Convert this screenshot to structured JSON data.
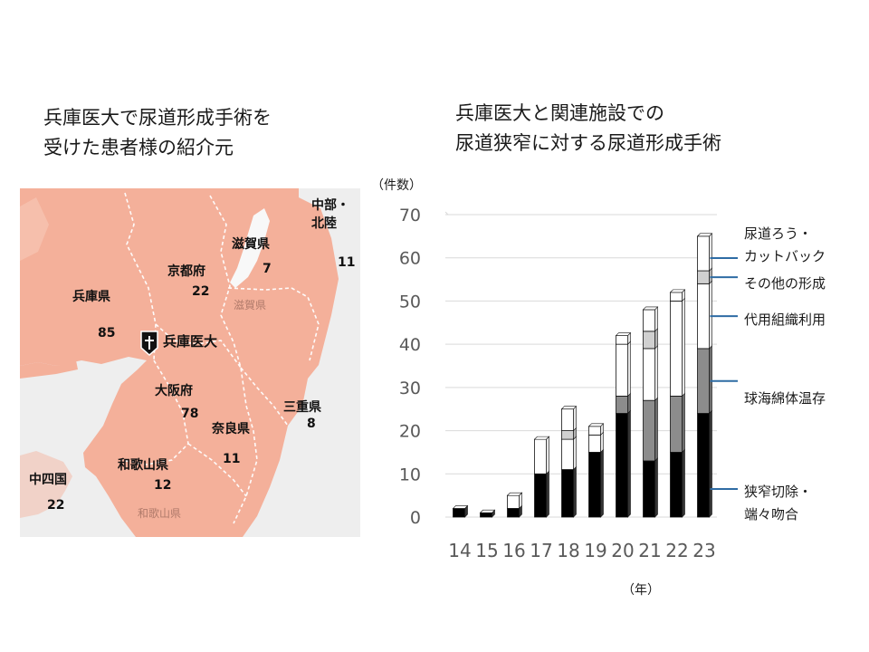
{
  "left_title": {
    "line1": "兵庫医大で尿道形成手術を",
    "line2": "受けた患者様の紹介元"
  },
  "right_title": {
    "line1": "兵庫医大と関連施設での",
    "line2": "尿道狭窄に対する尿道形成手術"
  },
  "map": {
    "regions": [
      {
        "name": "中部・",
        "name2": "北陸",
        "count": "11"
      },
      {
        "name": "滋賀県",
        "count": "7"
      },
      {
        "name": "京都府",
        "count": "22"
      },
      {
        "name": "兵庫県",
        "count": "85"
      },
      {
        "name": "大阪府",
        "count": "78"
      },
      {
        "name": "三重県",
        "count": "8"
      },
      {
        "name": "奈良県",
        "count": "11"
      },
      {
        "name": "和歌山県",
        "count": "12"
      },
      {
        "name": "中四国",
        "count": "22"
      }
    ],
    "hospital_label": "兵庫医大",
    "faded_labels": {
      "shiga": "滋賀県",
      "wakayama": "和歌山県"
    },
    "colors": {
      "land": "#f4b09a",
      "sea": "#eeeeee",
      "border": "#ffffff"
    }
  },
  "chart_data": {
    "type": "bar",
    "stacked": true,
    "y_unit_label": "（件数）",
    "x_unit_label": "（年）",
    "ylim": [
      0,
      70
    ],
    "yticks": [
      "0",
      "10",
      "20",
      "30",
      "40",
      "50",
      "60",
      "70"
    ],
    "categories": [
      "14",
      "15",
      "16",
      "17",
      "18",
      "19",
      "20",
      "21",
      "22",
      "23"
    ],
    "series": [
      {
        "name": "狭窄切除・端々吻合",
        "name_lines": [
          "狭窄切除・",
          "端々吻合"
        ],
        "color": "#000000",
        "values": [
          2,
          1,
          2,
          10,
          11,
          15,
          24,
          13,
          15,
          24
        ]
      },
      {
        "name": "球海綿体温存",
        "name_lines": [
          "球海綿体温存"
        ],
        "color": "#8c8c8c",
        "values": [
          0,
          0,
          0,
          0,
          0,
          0,
          4,
          14,
          13,
          15
        ]
      },
      {
        "name": "代用組織利用",
        "name_lines": [
          "代用組織利用"
        ],
        "color": "#ffffff",
        "values": [
          0,
          0,
          3,
          8,
          7,
          4,
          12,
          12,
          22,
          15
        ]
      },
      {
        "name": "その他の形成",
        "name_lines": [
          "その他の形成"
        ],
        "color": "#d0d0d0",
        "values": [
          0,
          0,
          0,
          0,
          2,
          0,
          0,
          4,
          0,
          3
        ]
      },
      {
        "name": "尿道ろう・カットバック",
        "name_lines": [
          "尿道ろう・",
          "カットバック"
        ],
        "color": "#ffffff",
        "values": [
          0,
          0,
          0,
          0,
          5,
          2,
          2,
          5,
          2,
          8
        ]
      }
    ],
    "grid": true,
    "legend": "right, with leader lines"
  }
}
